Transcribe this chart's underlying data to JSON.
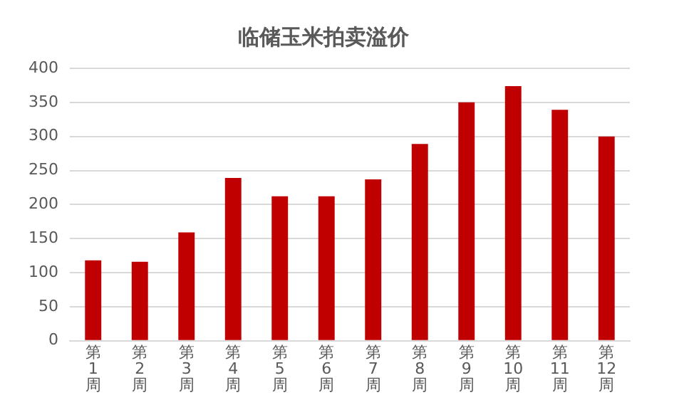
{
  "chart_data": {
    "type": "bar",
    "title": "临储玉米拍卖溢价",
    "categories": [
      "第1周",
      "第2周",
      "第3周",
      "第4周",
      "第5周",
      "第6周",
      "第7周",
      "第8周",
      "第9周",
      "第10周",
      "第11周",
      "第12周"
    ],
    "values": [
      118,
      116,
      159,
      239,
      212,
      212,
      237,
      289,
      350,
      374,
      339,
      300
    ],
    "color": "#c00000",
    "ylim": [
      0,
      400
    ],
    "yticks": [
      0,
      50,
      100,
      150,
      200,
      250,
      300,
      350,
      400
    ],
    "grid": "y"
  }
}
